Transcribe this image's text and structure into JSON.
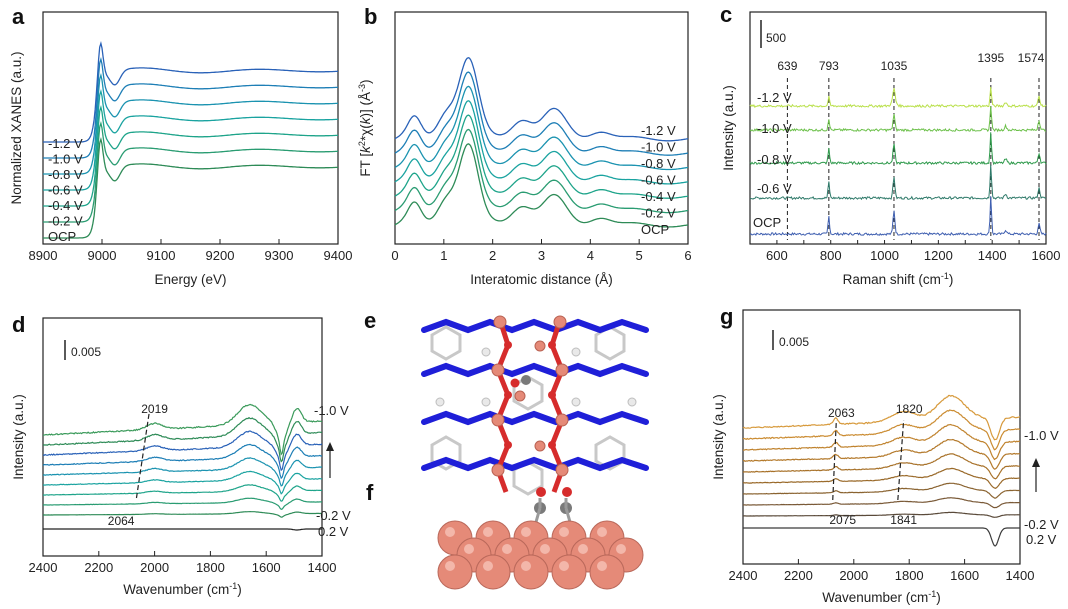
{
  "figure": {
    "panels": [
      "a",
      "b",
      "c",
      "d",
      "e",
      "f",
      "g"
    ]
  },
  "colors": {
    "axis": "#222222",
    "blue_green": [
      "#2a62b8",
      "#1e7fb6",
      "#1b93b0",
      "#1aa3a0",
      "#1ea48a",
      "#2a9c72",
      "#2e8b57"
    ],
    "raman": [
      "#3f5fb0",
      "#2f7a6a",
      "#2f9a4c",
      "#6cc04a",
      "#b9e04a"
    ],
    "brown": [
      "#3a3a3a",
      "#5a4a3a",
      "#7a5a38",
      "#8a6330",
      "#9a6a2a",
      "#a8722a",
      "#b47a2c",
      "#c0832e",
      "#cb8c32",
      "#d79a3c"
    ],
    "atom_cu": "#e58a78",
    "atom_o": "#d62c2c",
    "atom_n": "#1f1fd8",
    "atom_c": "#7a7a7a",
    "atom_h": "#e8e8e8"
  },
  "chart_data": [
    {
      "id": "a",
      "type": "line",
      "title": "",
      "xlabel": "Energy (eV)",
      "ylabel": "Normalized XANES (a.u.)",
      "xlim": [
        8900,
        9400
      ],
      "xticks": [
        "8900",
        "9000",
        "9100",
        "9200",
        "9300",
        "9400"
      ],
      "legend_labels": [
        "-1.2 V",
        "-1.0 V",
        "-0.8 V",
        "-0.6 V",
        "-0.4 V",
        "-0.2 V",
        "OCP"
      ],
      "series_count": 7,
      "offset_step": 0.13,
      "edge_energy": 8990,
      "white_line_energy": 8997
    },
    {
      "id": "b",
      "type": "line",
      "title": "",
      "xlabel": "Interatomic distance (Å)",
      "ylabel_parts": [
        "FT [",
        "k",
        "2",
        "*χ(",
        "k",
        ")] (Å",
        "-3",
        ")"
      ],
      "xlim": [
        0,
        6
      ],
      "xticks": [
        "0",
        "1",
        "2",
        "3",
        "4",
        "5",
        "6"
      ],
      "legend_labels": [
        "-1.2 V",
        "-1.0 V",
        "-0.8 V",
        "-0.6 V",
        "-0.4 V",
        "-0.2 V",
        "OCP"
      ],
      "series_count": 7,
      "main_peak_r": 1.5
    },
    {
      "id": "c",
      "type": "line",
      "title": "",
      "xlabel_parts": [
        "Raman shift (cm",
        "-1",
        ")"
      ],
      "ylabel": "Intensity (a.u.)",
      "xlim": [
        500,
        1600
      ],
      "xticks": [
        "600",
        "700",
        "800",
        "900",
        "1000",
        "1100",
        "1200",
        "1300",
        "1400",
        "1500",
        "1600"
      ],
      "scale_bar": "500",
      "peak_labels": [
        "639",
        "793",
        "1035",
        "1395",
        "1574"
      ],
      "peak_positions": [
        639,
        793,
        1035,
        1395,
        1574
      ],
      "legend_labels": [
        "-1.2 V",
        "-1.0 V",
        "-0.8 V",
        "-0.6 V",
        "OCP"
      ]
    },
    {
      "id": "d",
      "type": "line",
      "title": "",
      "xlabel_parts": [
        "Wavenumber (cm",
        "-1",
        ")"
      ],
      "ylabel": "Intensity (a.u.)",
      "xlim": [
        2400,
        1400
      ],
      "xticks": [
        "2400",
        "2200",
        "2000",
        "1800",
        "1600",
        "1400"
      ],
      "scale_bar": "0.005",
      "annotations": [
        "2019",
        "2064"
      ],
      "potential_top": "-1.0 V",
      "potential_mid": "-0.2 V",
      "potential_bottom": "0.2 V",
      "series_count": 10
    },
    {
      "id": "g",
      "type": "line",
      "title": "",
      "xlabel_parts": [
        "Wavenumber (cm",
        "-1",
        ")"
      ],
      "ylabel": "Intensity (a.u.)",
      "xlim": [
        2400,
        1400
      ],
      "xticks": [
        "2400",
        "2200",
        "2000",
        "1800",
        "1600",
        "1400"
      ],
      "scale_bar": "0.005",
      "annotations_top": [
        "2063",
        "1820"
      ],
      "annotations_bottom": [
        "2075",
        "1841"
      ],
      "potential_top": "-1.0 V",
      "potential_mid": "-0.2 V",
      "potential_bottom": "0.2 V",
      "series_count": 10
    }
  ]
}
